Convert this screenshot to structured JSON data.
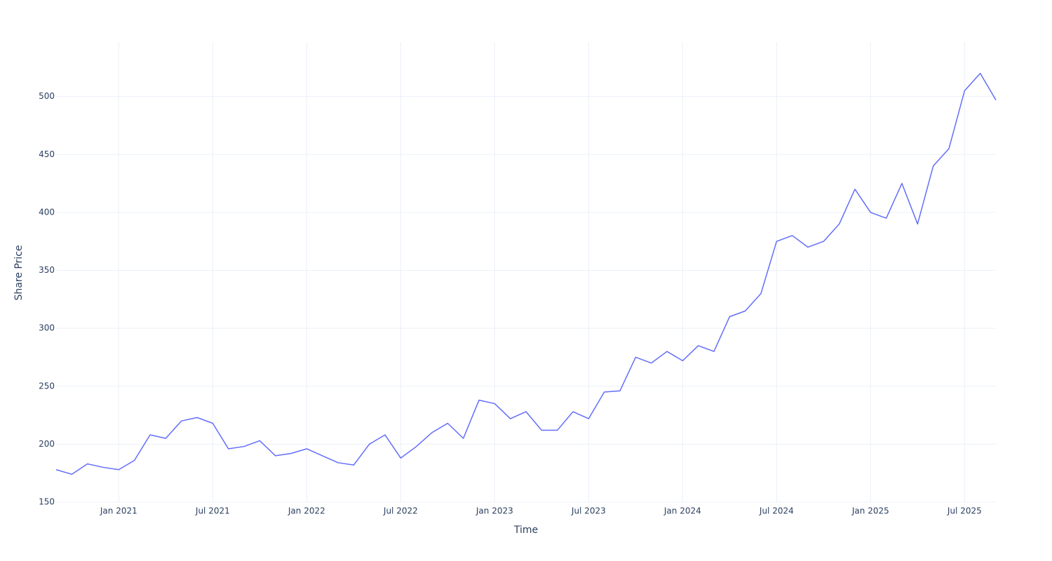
{
  "chart_data": {
    "type": "line",
    "x_label": "Time",
    "y_label": "Share Price",
    "x": [
      "2020-09",
      "2020-10",
      "2020-11",
      "2020-12",
      "2021-01",
      "2021-02",
      "2021-03",
      "2021-04",
      "2021-05",
      "2021-06",
      "2021-07",
      "2021-08",
      "2021-09",
      "2021-10",
      "2021-11",
      "2021-12",
      "2022-01",
      "2022-02",
      "2022-03",
      "2022-04",
      "2022-05",
      "2022-06",
      "2022-07",
      "2022-08",
      "2022-09",
      "2022-10",
      "2022-11",
      "2022-12",
      "2023-01",
      "2023-02",
      "2023-03",
      "2023-04",
      "2023-05",
      "2023-06",
      "2023-07",
      "2023-08",
      "2023-09",
      "2023-10",
      "2023-11",
      "2023-12",
      "2024-01",
      "2024-02",
      "2024-03",
      "2024-04",
      "2024-05",
      "2024-06",
      "2024-07",
      "2024-08",
      "2024-09",
      "2024-10",
      "2024-11",
      "2024-12",
      "2025-01",
      "2025-02",
      "2025-03",
      "2025-04",
      "2025-05",
      "2025-06",
      "2025-07",
      "2025-08",
      "2025-09"
    ],
    "series": [
      {
        "color": "#636efa",
        "values": [
          178,
          174,
          183,
          180,
          178,
          186,
          208,
          205,
          220,
          223,
          218,
          196,
          198,
          203,
          190,
          192,
          196,
          190,
          184,
          182,
          200,
          208,
          188,
          198,
          210,
          218,
          205,
          238,
          235,
          222,
          228,
          212,
          212,
          228,
          222,
          245,
          246,
          275,
          270,
          280,
          272,
          285,
          280,
          310,
          315,
          330,
          375,
          380,
          370,
          375,
          390,
          420,
          400,
          395,
          425,
          390,
          440,
          455,
          505,
          520,
          497
        ]
      }
    ],
    "xlim": [
      "2020-09",
      "2025-09"
    ],
    "xticks": [
      {
        "value": "2021-01",
        "label": "Jan 2021"
      },
      {
        "value": "2021-07",
        "label": "Jul 2021"
      },
      {
        "value": "2022-01",
        "label": "Jan 2022"
      },
      {
        "value": "2022-07",
        "label": "Jul 2022"
      },
      {
        "value": "2023-01",
        "label": "Jan 2023"
      },
      {
        "value": "2023-07",
        "label": "Jul 2023"
      },
      {
        "value": "2024-01",
        "label": "Jan 2024"
      },
      {
        "value": "2024-07",
        "label": "Jul 2024"
      },
      {
        "value": "2025-01",
        "label": "Jan 2025"
      },
      {
        "value": "2025-07",
        "label": "Jul 2025"
      }
    ],
    "ylim": [
      150,
      547
    ],
    "yticks": [
      150,
      200,
      250,
      300,
      350,
      400,
      450,
      500
    ],
    "grid": true
  }
}
